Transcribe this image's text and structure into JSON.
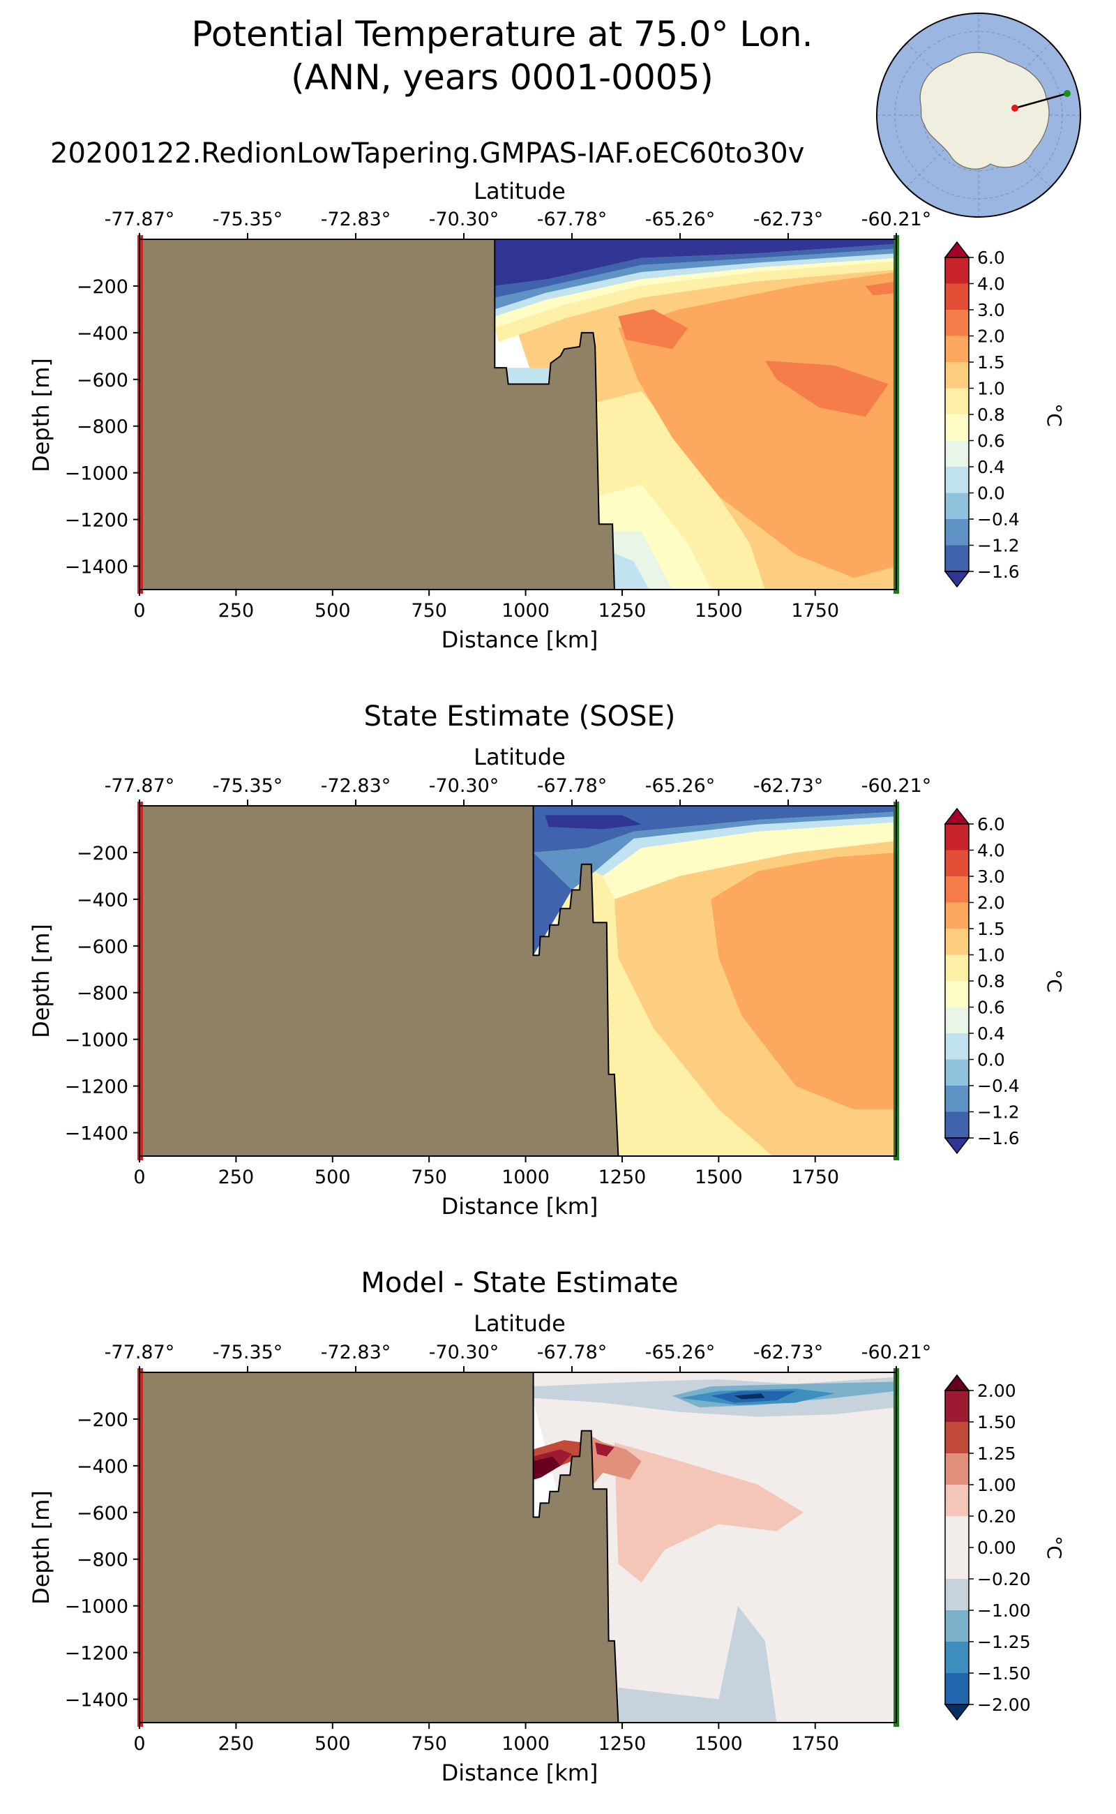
{
  "figure": {
    "title_line1": "Potential Temperature at 75.0° Lon.",
    "title_line2": "(ANN, years 0001-0005)",
    "run_name": "20200122.RedionLowTapering.GMPAS-IAF.oEC60to30v",
    "land_color": "#8f8165",
    "start_marker_color": "#d62020",
    "end_marker_color": "#1f7a1f"
  },
  "inset_map": {
    "ocean_color": "#9bb6e0",
    "land_color": "#efeedf",
    "transect_line_color": "#000000"
  },
  "chart_data": [
    {
      "type": "contourf",
      "title": "",
      "xlabel": "Distance [km]",
      "ylabel": "Depth [m]",
      "top_axis_label": "Latitude",
      "x_ticks": [
        "0",
        "250",
        "500",
        "750",
        "1000",
        "1250",
        "1500",
        "1750"
      ],
      "top_ticks": [
        "-77.87°",
        "-75.35°",
        "-72.83°",
        "-70.30°",
        "-67.78°",
        "-65.26°",
        "-62.73°",
        "-60.21°"
      ],
      "y_ticks": [
        "−200",
        "−400",
        "−600",
        "−800",
        "−1000",
        "−1200",
        "−1400"
      ],
      "xlim": [
        0,
        1960
      ],
      "ylim": [
        -1500,
        0
      ],
      "colorbar_label": "°C",
      "colorbar_levels": [
        "6.0",
        "4.0",
        "3.0",
        "2.0",
        "1.5",
        "1.0",
        "0.8",
        "0.6",
        "0.4",
        "0.0",
        "−0.4",
        "−1.2",
        "−1.6"
      ],
      "colorbar_colors": [
        "#a50026",
        "#c9232b",
        "#e34f36",
        "#f57d4a",
        "#fca85e",
        "#fdcd80",
        "#fef0a7",
        "#fefdc6",
        "#e9f5e6",
        "#c1e3ef",
        "#90c3dd",
        "#6093c5",
        "#3f64ad",
        "#313695"
      ],
      "seafloor_boundary": [
        [
          920,
          0
        ],
        [
          920,
          -550
        ],
        [
          950,
          -550
        ],
        [
          955,
          -620
        ],
        [
          1060,
          -620
        ],
        [
          1065,
          -530
        ],
        [
          1090,
          -500
        ],
        [
          1100,
          -470
        ],
        [
          1140,
          -460
        ],
        [
          1145,
          -400
        ],
        [
          1175,
          -400
        ],
        [
          1180,
          -460
        ],
        [
          1190,
          -1220
        ],
        [
          1225,
          -1220
        ],
        [
          1230,
          -1500
        ]
      ]
    },
    {
      "type": "contourf",
      "title": "State Estimate (SOSE)",
      "xlabel": "Distance [km]",
      "ylabel": "Depth [m]",
      "top_axis_label": "Latitude",
      "x_ticks": [
        "0",
        "250",
        "500",
        "750",
        "1000",
        "1250",
        "1500",
        "1750"
      ],
      "top_ticks": [
        "-77.87°",
        "-75.35°",
        "-72.83°",
        "-70.30°",
        "-67.78°",
        "-65.26°",
        "-62.73°",
        "-60.21°"
      ],
      "y_ticks": [
        "−200",
        "−400",
        "−600",
        "−800",
        "−1000",
        "−1200",
        "−1400"
      ],
      "xlim": [
        0,
        1960
      ],
      "ylim": [
        -1500,
        0
      ],
      "colorbar_label": "°C",
      "colorbar_levels": [
        "6.0",
        "4.0",
        "3.0",
        "2.0",
        "1.5",
        "1.0",
        "0.8",
        "0.6",
        "0.4",
        "0.0",
        "−0.4",
        "−1.2",
        "−1.6"
      ],
      "colorbar_colors": [
        "#a50026",
        "#c9232b",
        "#e34f36",
        "#f57d4a",
        "#fca85e",
        "#fdcd80",
        "#fef0a7",
        "#fefdc6",
        "#e9f5e6",
        "#c1e3ef",
        "#90c3dd",
        "#6093c5",
        "#3f64ad",
        "#313695"
      ],
      "seafloor_boundary": [
        [
          1020,
          0
        ],
        [
          1020,
          -640
        ],
        [
          1035,
          -640
        ],
        [
          1038,
          -560
        ],
        [
          1060,
          -560
        ],
        [
          1063,
          -510
        ],
        [
          1085,
          -510
        ],
        [
          1090,
          -440
        ],
        [
          1115,
          -440
        ],
        [
          1120,
          -360
        ],
        [
          1140,
          -360
        ],
        [
          1145,
          -250
        ],
        [
          1170,
          -250
        ],
        [
          1175,
          -500
        ],
        [
          1210,
          -500
        ],
        [
          1215,
          -1150
        ],
        [
          1230,
          -1150
        ],
        [
          1240,
          -1500
        ]
      ]
    },
    {
      "type": "contourf",
      "title": "Model - State Estimate",
      "xlabel": "Distance [km]",
      "ylabel": "Depth [m]",
      "top_axis_label": "Latitude",
      "x_ticks": [
        "0",
        "250",
        "500",
        "750",
        "1000",
        "1250",
        "1500",
        "1750"
      ],
      "top_ticks": [
        "-77.87°",
        "-75.35°",
        "-72.83°",
        "-70.30°",
        "-67.78°",
        "-65.26°",
        "-62.73°",
        "-60.21°"
      ],
      "y_ticks": [
        "−200",
        "−400",
        "−600",
        "−800",
        "−1000",
        "−1200",
        "−1400"
      ],
      "xlim": [
        0,
        1960
      ],
      "ylim": [
        -1500,
        0
      ],
      "colorbar_label": "°C",
      "colorbar_levels": [
        "2.00",
        "1.50",
        "1.25",
        "1.00",
        "0.20",
        "0.00",
        "−0.20",
        "−1.00",
        "−1.25",
        "−1.50",
        "−2.00"
      ],
      "colorbar_colors": [
        "#67001f",
        "#9c1b33",
        "#c14a3a",
        "#e0907b",
        "#f3c6b8",
        "#f2ecea",
        "#f2ecea",
        "#c7d3dc",
        "#7ab0c9",
        "#3f8ec0",
        "#2166ac",
        "#053061"
      ],
      "seafloor_boundary": [
        [
          1020,
          0
        ],
        [
          1020,
          -620
        ],
        [
          1035,
          -620
        ],
        [
          1038,
          -560
        ],
        [
          1060,
          -560
        ],
        [
          1063,
          -510
        ],
        [
          1085,
          -510
        ],
        [
          1090,
          -440
        ],
        [
          1115,
          -440
        ],
        [
          1120,
          -360
        ],
        [
          1140,
          -360
        ],
        [
          1145,
          -250
        ],
        [
          1170,
          -250
        ],
        [
          1175,
          -500
        ],
        [
          1210,
          -500
        ],
        [
          1215,
          -1150
        ],
        [
          1230,
          -1150
        ],
        [
          1240,
          -1500
        ]
      ]
    }
  ]
}
